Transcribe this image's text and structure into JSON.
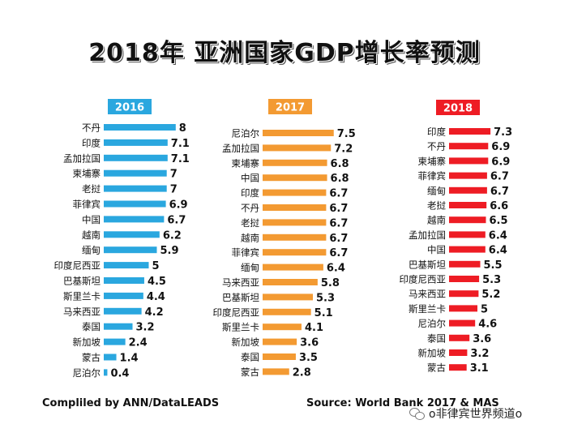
{
  "title": "2018年  亚洲国家GDP增长率预测",
  "footer": {
    "left": "Compliled by ANN/DataLEADS",
    "right": "Source: World Bank 2017 & MAS",
    "watermark": "o非律宾世界频道o",
    "watermark_icon": "wechat-icon"
  },
  "chart_data": [
    {
      "type": "bar",
      "orientation": "horizontal",
      "title": "2016",
      "color": "#2aa7df",
      "categories": [
        "不丹",
        "印度",
        "孟加拉国",
        "柬埔寨",
        "老挝",
        "菲律宾",
        "中国",
        "越南",
        "缅甸",
        "印度尼西亚",
        "巴基斯坦",
        "斯里兰卡",
        "马来西亚",
        "泰国",
        "新加坡",
        "蒙古",
        "尼泊尔"
      ],
      "values": [
        8,
        7.1,
        7.1,
        7,
        7,
        6.9,
        6.7,
        6.2,
        5.9,
        5,
        4.5,
        4.4,
        4.2,
        3.2,
        2.4,
        1.4,
        0.4
      ],
      "labels": [
        "8",
        "7.1",
        "7.1",
        "7",
        "7",
        "6.9",
        "6.7",
        "6.2",
        "5.9",
        "5",
        "4.5",
        "4.4",
        "4.2",
        "3.2",
        "2.4",
        "1.4",
        "0.4"
      ]
    },
    {
      "type": "bar",
      "orientation": "horizontal",
      "title": "2017",
      "color": "#f39a32",
      "categories": [
        "尼泊尔",
        "孟加拉国",
        "柬埔寨",
        "中国",
        "印度",
        "不丹",
        "老挝",
        "越南",
        "菲律宾",
        "缅甸",
        "马来西亚",
        "巴基斯坦",
        "印度尼西亚",
        "斯里兰卡",
        "新加坡",
        "泰国",
        "蒙古"
      ],
      "values": [
        7.5,
        7.2,
        6.8,
        6.8,
        6.7,
        6.7,
        6.7,
        6.7,
        6.7,
        6.4,
        5.8,
        5.3,
        5.1,
        4.1,
        3.6,
        3.5,
        2.8
      ],
      "labels": [
        "7.5",
        "7.2",
        "6.8",
        "6.8",
        "6.7",
        "6.7",
        "6.7",
        "6.7",
        "6.7",
        "6.4",
        "5.8",
        "5.3",
        "5.1",
        "4.1",
        "3.6",
        "3.5",
        "2.8"
      ]
    },
    {
      "type": "bar",
      "orientation": "horizontal",
      "title": "2018",
      "color": "#ee1c24",
      "categories": [
        "印度",
        "不丹",
        "柬埔寨",
        "菲律宾",
        "缅甸",
        "老挝",
        "越南",
        "孟加拉国",
        "中国",
        "巴基斯坦",
        "印度尼西亚",
        "马来西亚",
        "斯里兰卡",
        "尼泊尔",
        "泰国",
        "新加坡",
        "蒙古"
      ],
      "values": [
        7.3,
        6.9,
        6.9,
        6.7,
        6.7,
        6.6,
        6.5,
        6.4,
        6.4,
        5.5,
        5.3,
        5.2,
        5,
        4.6,
        3.6,
        3.2,
        3.1
      ],
      "labels": [
        "7.3",
        "6.9",
        "6.9",
        "6.7",
        "6.7",
        "6.6",
        "6.5",
        "6.4",
        "6.4",
        "5.5",
        "5.3",
        "5.2",
        "5",
        "4.6",
        "3.6",
        "3.2",
        "3.1"
      ]
    }
  ]
}
